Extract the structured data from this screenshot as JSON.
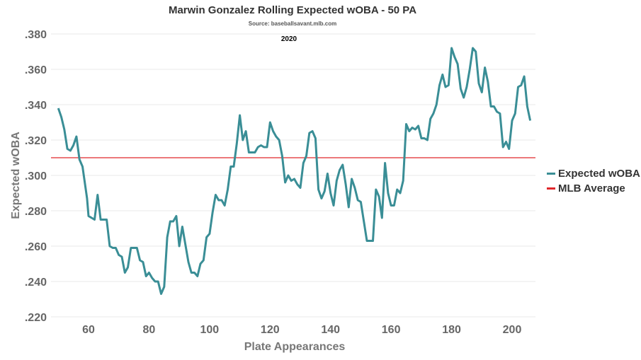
{
  "chart_data": {
    "type": "line",
    "title": "Marwin Gonzalez Rolling Expected wOBA - 50 PA",
    "subtitle": "Source: baseballsavant.mlb.com",
    "annotation": "2020",
    "xlabel": "Plate Appearances",
    "ylabel": "Expected wOBA",
    "xlim": [
      48,
      207
    ],
    "ylim": [
      0.22,
      0.38
    ],
    "x_ticks": [
      "60",
      "80",
      "100",
      "120",
      "140",
      "160",
      "180",
      "200"
    ],
    "y_ticks": [
      ".220",
      ".240",
      ".260",
      ".280",
      ".300",
      ".320",
      ".340",
      ".360",
      ".380"
    ],
    "grid": "horizontal",
    "legend_position": "right",
    "series": [
      {
        "name": "Expected wOBA",
        "color": "#3a8e96",
        "x": [
          50,
          51,
          52,
          53,
          54,
          55,
          56,
          57,
          58,
          59.5,
          60,
          61,
          62,
          63,
          64,
          66,
          67,
          68,
          69,
          70,
          71,
          72,
          73,
          74,
          76,
          77,
          78,
          79,
          80,
          81,
          82,
          83,
          84,
          85,
          86,
          87,
          88,
          89,
          90,
          91,
          92,
          93,
          94,
          95,
          96,
          97,
          98,
          99,
          100,
          101,
          102,
          103,
          104,
          105,
          106,
          107,
          108,
          109,
          110,
          111,
          112,
          113,
          115,
          116,
          117,
          118,
          119,
          120,
          121,
          122,
          123,
          124,
          125,
          126,
          127,
          128,
          129,
          130,
          131,
          132,
          133,
          134,
          135,
          136,
          137,
          138,
          139,
          140,
          141,
          142,
          143,
          144,
          145,
          146,
          147,
          148,
          149,
          150,
          151,
          152,
          154,
          155,
          156,
          157,
          158,
          159,
          160,
          161,
          162,
          163,
          164,
          165,
          166,
          167,
          168,
          169,
          170,
          171,
          172,
          173,
          174,
          175,
          176,
          177,
          178,
          179,
          180,
          181,
          182,
          183,
          184,
          185,
          186,
          187,
          188,
          189,
          190,
          191,
          192,
          193,
          194,
          195,
          196,
          197,
          198,
          199,
          200,
          201,
          202,
          203,
          204,
          205,
          206
        ],
        "y": [
          0.338,
          0.333,
          0.326,
          0.315,
          0.314,
          0.317,
          0.322,
          0.309,
          0.305,
          0.287,
          0.277,
          0.276,
          0.275,
          0.289,
          0.275,
          0.275,
          0.26,
          0.259,
          0.259,
          0.255,
          0.254,
          0.245,
          0.248,
          0.259,
          0.259,
          0.252,
          0.251,
          0.243,
          0.245,
          0.242,
          0.24,
          0.24,
          0.233,
          0.237,
          0.265,
          0.274,
          0.274,
          0.277,
          0.26,
          0.271,
          0.261,
          0.251,
          0.245,
          0.245,
          0.243,
          0.25,
          0.252,
          0.265,
          0.267,
          0.279,
          0.289,
          0.286,
          0.286,
          0.283,
          0.292,
          0.305,
          0.305,
          0.318,
          0.334,
          0.32,
          0.325,
          0.313,
          0.313,
          0.316,
          0.317,
          0.316,
          0.316,
          0.33,
          0.325,
          0.322,
          0.32,
          0.311,
          0.296,
          0.3,
          0.297,
          0.298,
          0.295,
          0.293,
          0.307,
          0.311,
          0.324,
          0.325,
          0.321,
          0.292,
          0.287,
          0.291,
          0.301,
          0.29,
          0.283,
          0.297,
          0.303,
          0.306,
          0.295,
          0.282,
          0.298,
          0.293,
          0.286,
          0.285,
          0.274,
          0.263,
          0.263,
          0.292,
          0.288,
          0.276,
          0.307,
          0.29,
          0.283,
          0.283,
          0.292,
          0.29,
          0.297,
          0.329,
          0.325,
          0.327,
          0.326,
          0.328,
          0.321,
          0.321,
          0.32,
          0.332,
          0.335,
          0.34,
          0.351,
          0.357,
          0.35,
          0.351,
          0.372,
          0.367,
          0.363,
          0.349,
          0.344,
          0.35,
          0.36,
          0.372,
          0.37,
          0.352,
          0.347,
          0.361,
          0.353,
          0.339,
          0.339,
          0.336,
          0.335,
          0.316,
          0.319,
          0.315,
          0.331,
          0.335,
          0.35,
          0.351,
          0.356,
          0.339,
          0.331
        ]
      },
      {
        "name": "MLB Average",
        "color": "#e0282b",
        "y_constant": 0.31
      }
    ]
  }
}
